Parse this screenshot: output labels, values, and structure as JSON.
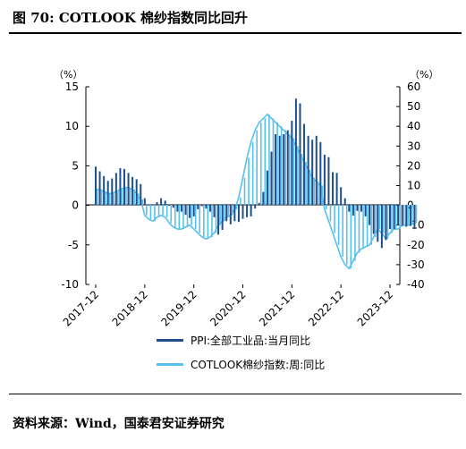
{
  "figure": {
    "title": "图 70: COTLOOK 棉纱指数同比回升",
    "source": "资料来源：Wind，国泰君安证券研究"
  },
  "colors": {
    "ppi": "#1f4e8c",
    "cotlook": "#58c0ee"
  },
  "chart_data": {
    "type": "bar+line",
    "left_unit": "（%）",
    "right_unit": "（%）",
    "x_tick_labels": [
      "2017-12",
      "2018-12",
      "2019-12",
      "2020-12",
      "2021-12",
      "2022-12",
      "2023-12"
    ],
    "x_range": [
      "2017-12",
      "2023-12"
    ],
    "ylim_left": [
      -10,
      15
    ],
    "yticks_left": [
      15,
      10,
      5,
      0,
      -5,
      -10
    ],
    "ylim_right": [
      -40,
      60
    ],
    "yticks_right": [
      60,
      50,
      40,
      30,
      20,
      10,
      0,
      -10,
      -20,
      -30,
      -40
    ],
    "series": [
      {
        "name": "PPI:全部工业品:当月同比",
        "type": "bar",
        "axis": "left",
        "start": "2017-12",
        "frequency": "monthly",
        "values": [
          4.9,
          4.3,
          3.7,
          3.1,
          3.4,
          4.1,
          4.7,
          4.6,
          4.1,
          3.6,
          3.3,
          2.7,
          0.9,
          0.1,
          0.1,
          0.4,
          0.9,
          0.6,
          0.0,
          -0.3,
          -0.8,
          -0.8,
          -1.2,
          -1.6,
          -1.4,
          -0.5,
          -0.1,
          -0.4,
          -0.8,
          -1.5,
          -3.7,
          -3.1,
          -2.0,
          -2.4,
          -2.0,
          -2.1,
          -1.7,
          -1.5,
          -1.4,
          -0.4,
          0.3,
          1.7,
          4.4,
          6.8,
          9.0,
          8.8,
          9.0,
          9.5,
          10.7,
          13.5,
          12.9,
          10.3,
          8.8,
          8.3,
          8.8,
          8.0,
          6.4,
          6.1,
          4.2,
          4.1,
          2.3,
          0.9,
          -0.8,
          -1.3,
          -0.7,
          -0.8,
          -1.4,
          -2.5,
          -3.6,
          -4.6,
          -5.4,
          -4.4,
          -3.0,
          -3.0,
          -2.5,
          -2.6,
          -2.7,
          -2.6,
          -3.0
        ]
      },
      {
        "name": "COTLOOK棉纱指数:周:同比",
        "type": "line",
        "axis": "right",
        "start": "2017-12",
        "frequency": "monthly",
        "values": [
          8,
          8,
          7,
          6,
          6,
          7,
          8,
          9,
          9,
          8,
          6,
          3,
          -5,
          -7,
          -8,
          -6,
          -5,
          -6,
          -9,
          -11,
          -12,
          -12,
          -11,
          -10,
          -12,
          -14,
          -16,
          -17,
          -16,
          -14,
          -10,
          -8,
          -6,
          -5,
          -2,
          4,
          14,
          24,
          32,
          38,
          42,
          44,
          46,
          44,
          42,
          40,
          38,
          36,
          34,
          30,
          26,
          22,
          18,
          14,
          12,
          10,
          -2,
          -8,
          -14,
          -20,
          -26,
          -30,
          -32,
          -28,
          -24,
          -22,
          -21,
          -20,
          -16,
          -12,
          -14,
          -17,
          -14,
          -12,
          -12,
          -10,
          -10,
          -10,
          -9
        ]
      }
    ]
  },
  "legend": {
    "ppi_label": "PPI:全部工业品:当月同比",
    "cotlook_label": "COTLOOK棉纱指数:周:同比"
  }
}
